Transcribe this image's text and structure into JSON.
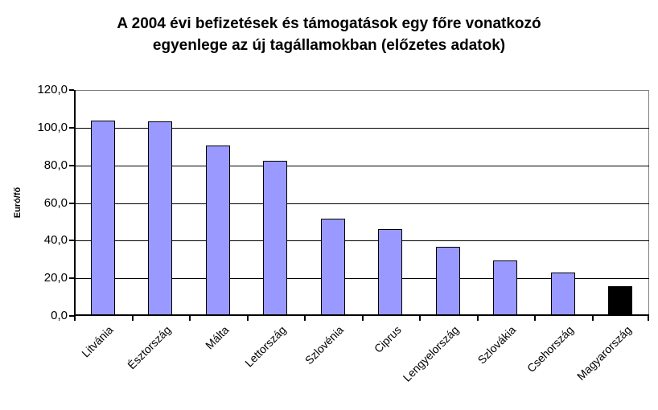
{
  "chart_data": {
    "type": "bar",
    "title": "A 2004 évi befizetések és támogatások egy főre vonatkozó egyenlege az új tagállamokban (előzetes adatok)",
    "title_lines": [
      "A 2004 évi befizetések és támogatások egy főre vonatkozó",
      "egyenlege az új tagállamokban (előzetes adatok)"
    ],
    "ylabel": "Euró/fő",
    "xlabel": "",
    "categories": [
      "Litvánia",
      "Észtország",
      "Málta",
      "Lettország",
      "Szlovénia",
      "Ciprus",
      "Lengyelország",
      "Szlovákia",
      "Csehország",
      "Magyarország"
    ],
    "values": [
      103.8,
      103.4,
      90.7,
      82.5,
      51.8,
      46.2,
      36.8,
      29.5,
      23.0,
      15.9
    ],
    "ylim": [
      0,
      120
    ],
    "ytick_step": 20,
    "ytick_labels": [
      "0,0",
      "20,0",
      "40,0",
      "60,0",
      "80,0",
      "100,0",
      "120,0"
    ],
    "grid": true,
    "legend": "none",
    "bar_colors": [
      "#9999FF",
      "#9999FF",
      "#9999FF",
      "#9999FF",
      "#9999FF",
      "#9999FF",
      "#9999FF",
      "#9999FF",
      "#9999FF",
      "#000000"
    ],
    "bar_border_color": "#000000",
    "axis_color": "#000000",
    "gridline_color": "#000000",
    "plot_border_color": "#808080",
    "background_color": "#FFFFFF",
    "highlight_category": "Magyarország",
    "highlight_color": "#000000"
  }
}
